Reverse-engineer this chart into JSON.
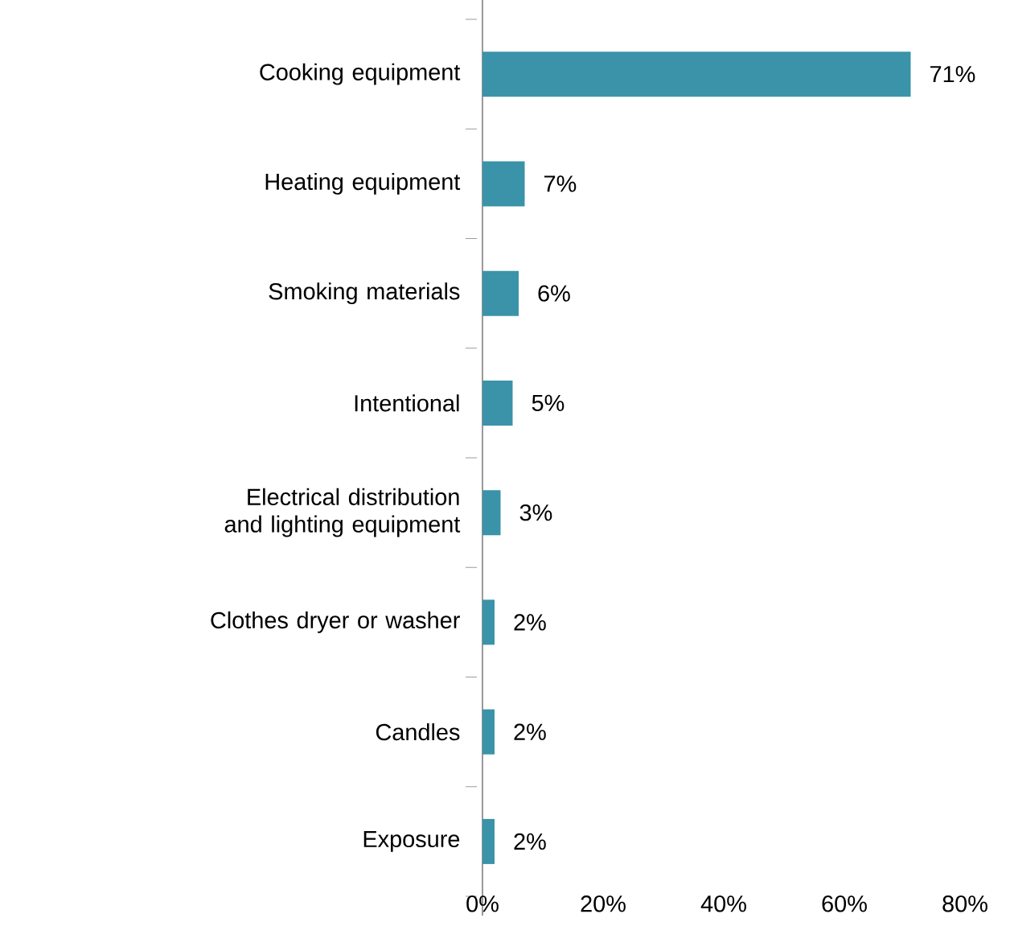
{
  "chart_data": {
    "type": "bar",
    "orientation": "horizontal",
    "categories": [
      "Cooking equipment",
      "Heating equipment",
      "Smoking materials",
      "Intentional",
      "Electrical distribution and lighting equipment",
      "Clothes dryer or washer",
      "Candles",
      "Exposure"
    ],
    "values": [
      71,
      7,
      6,
      5,
      3,
      2,
      2,
      2
    ],
    "value_labels": [
      "71%",
      "7%",
      "6%",
      "5%",
      "3%",
      "2%",
      "2%",
      "2%"
    ],
    "color": "#3a93a8",
    "xlim": [
      0,
      80
    ],
    "xticks": [
      {
        "value": 0,
        "label": "0%"
      },
      {
        "value": 20,
        "label": "20%"
      },
      {
        "value": 40,
        "label": "40%"
      },
      {
        "value": 60,
        "label": "60%"
      },
      {
        "value": 80,
        "label": "80%"
      }
    ],
    "grid": false
  }
}
